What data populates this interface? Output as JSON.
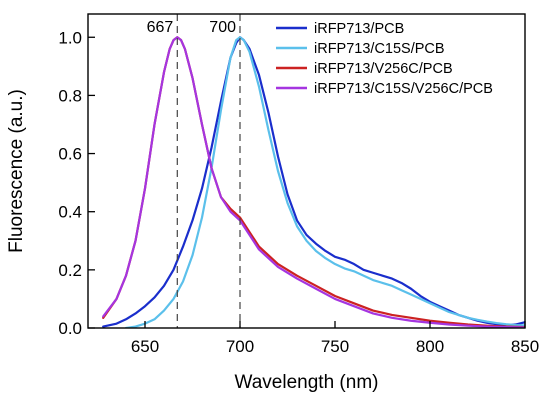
{
  "chart_data": {
    "type": "line",
    "title": "",
    "xlabel": "Wavelength (nm)",
    "ylabel": "Fluorescence (a.u.)",
    "xlim": [
      620,
      850
    ],
    "ylim": [
      0,
      1.08
    ],
    "x_ticks": [
      650,
      700,
      750,
      800,
      850
    ],
    "y_ticks": [
      0.0,
      0.2,
      0.4,
      0.6,
      0.8,
      1.0
    ],
    "x_tick_labels": [
      "650",
      "700",
      "750",
      "800",
      "850"
    ],
    "y_tick_labels": [
      "0.0",
      "0.2",
      "0.4",
      "0.6",
      "0.8",
      "1.0"
    ],
    "grid": false,
    "legend_position": "top-right",
    "annotations": [
      {
        "x": 667,
        "text": "667",
        "style": "dashed-vertical-line"
      },
      {
        "x": 700,
        "text": "700",
        "style": "dashed-vertical-line"
      }
    ],
    "series": [
      {
        "name": "iRFP713/PCB",
        "color": "#1a2ecc",
        "x": [
          628,
          635,
          640,
          645,
          650,
          655,
          660,
          665,
          670,
          675,
          680,
          685,
          690,
          695,
          698,
          700,
          702,
          705,
          710,
          715,
          720,
          725,
          730,
          735,
          740,
          745,
          750,
          755,
          760,
          765,
          770,
          775,
          780,
          785,
          790,
          795,
          800,
          805,
          810,
          815,
          820,
          825,
          830,
          835,
          840,
          845,
          850
        ],
        "y": [
          0.005,
          0.015,
          0.03,
          0.05,
          0.075,
          0.105,
          0.145,
          0.2,
          0.28,
          0.37,
          0.48,
          0.62,
          0.78,
          0.93,
          0.98,
          1.0,
          0.99,
          0.96,
          0.87,
          0.74,
          0.59,
          0.46,
          0.37,
          0.32,
          0.29,
          0.265,
          0.245,
          0.235,
          0.22,
          0.2,
          0.19,
          0.18,
          0.17,
          0.155,
          0.135,
          0.11,
          0.09,
          0.075,
          0.06,
          0.045,
          0.035,
          0.025,
          0.018,
          0.013,
          0.01,
          0.012,
          0.02
        ]
      },
      {
        "name": "iRFP713/C15S/PCB",
        "color": "#5bc0eb",
        "x": [
          640,
          645,
          650,
          655,
          660,
          665,
          670,
          675,
          680,
          685,
          690,
          695,
          698,
          700,
          702,
          705,
          710,
          715,
          720,
          725,
          730,
          735,
          740,
          745,
          750,
          755,
          760,
          765,
          770,
          775,
          780,
          785,
          790,
          795,
          800,
          805,
          810,
          815,
          820,
          825,
          830,
          835,
          840,
          845,
          850
        ],
        "y": [
          0.0,
          0.005,
          0.015,
          0.03,
          0.06,
          0.1,
          0.16,
          0.25,
          0.38,
          0.55,
          0.75,
          0.93,
          0.99,
          1.0,
          0.99,
          0.95,
          0.83,
          0.68,
          0.54,
          0.43,
          0.35,
          0.3,
          0.265,
          0.24,
          0.22,
          0.205,
          0.195,
          0.18,
          0.165,
          0.155,
          0.145,
          0.13,
          0.115,
          0.1,
          0.085,
          0.07,
          0.055,
          0.045,
          0.035,
          0.028,
          0.022,
          0.017,
          0.013,
          0.01,
          0.009
        ]
      },
      {
        "name": "iRFP713/V256C/PCB",
        "color": "#cc2222",
        "x": [
          628,
          635,
          640,
          645,
          650,
          655,
          660,
          663,
          665,
          667,
          669,
          671,
          675,
          680,
          685,
          690,
          695,
          700,
          705,
          710,
          720,
          730,
          740,
          750,
          760,
          770,
          780,
          790,
          800,
          810,
          820,
          830,
          840,
          850
        ],
        "y": [
          0.035,
          0.1,
          0.18,
          0.3,
          0.48,
          0.7,
          0.88,
          0.96,
          0.99,
          1.0,
          0.99,
          0.96,
          0.86,
          0.7,
          0.55,
          0.45,
          0.41,
          0.38,
          0.33,
          0.28,
          0.22,
          0.18,
          0.145,
          0.11,
          0.085,
          0.06,
          0.045,
          0.035,
          0.025,
          0.018,
          0.012,
          0.008,
          0.005,
          0.003
        ]
      },
      {
        "name": "iRFP713/C15S/V256C/PCB",
        "color": "#a535e0",
        "x": [
          628,
          635,
          640,
          645,
          650,
          655,
          660,
          663,
          665,
          667,
          669,
          671,
          675,
          680,
          685,
          690,
          695,
          700,
          705,
          710,
          720,
          730,
          740,
          750,
          760,
          770,
          780,
          790,
          800,
          810,
          820,
          830,
          840,
          850
        ],
        "y": [
          0.04,
          0.1,
          0.18,
          0.3,
          0.48,
          0.7,
          0.88,
          0.96,
          0.99,
          1.0,
          0.99,
          0.96,
          0.86,
          0.7,
          0.55,
          0.45,
          0.4,
          0.37,
          0.32,
          0.27,
          0.21,
          0.17,
          0.135,
          0.1,
          0.075,
          0.05,
          0.035,
          0.025,
          0.018,
          0.012,
          0.008,
          0.005,
          0.003,
          0.002
        ]
      }
    ]
  }
}
